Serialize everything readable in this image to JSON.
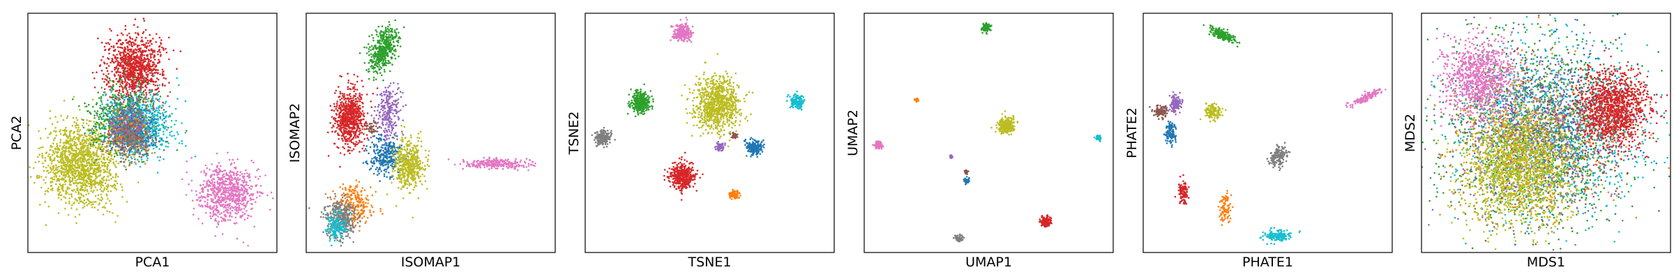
{
  "chart_data": [
    {
      "type": "scatter",
      "xlabel": "PCA1",
      "ylabel": "PCA2",
      "ticks": "none",
      "xlim": [
        0,
        1
      ],
      "ylim": [
        0,
        1
      ],
      "series": [
        {
          "color": "#bcbd22",
          "values": [
            {
              "x": 0.21,
              "y": 0.37
            }
          ],
          "spread": [
            0.07,
            0.085
          ],
          "count": 1400
        },
        {
          "color": "#d62728",
          "values": [
            {
              "x": 0.43,
              "y": 0.77
            }
          ],
          "spread": [
            0.055,
            0.07
          ],
          "count": 1000
        },
        {
          "color": "#2ca02c",
          "values": [
            {
              "x": 0.38,
              "y": 0.55
            }
          ],
          "spread": [
            0.065,
            0.065
          ],
          "count": 650
        },
        {
          "color": "#17becf",
          "values": [
            {
              "x": 0.45,
              "y": 0.53
            }
          ],
          "spread": [
            0.065,
            0.07
          ],
          "count": 650
        },
        {
          "color": "#1f77b4",
          "values": [
            {
              "x": 0.43,
              "y": 0.52
            }
          ],
          "spread": [
            0.05,
            0.055
          ],
          "count": 300
        },
        {
          "color": "#ff7f0e",
          "values": [
            {
              "x": 0.4,
              "y": 0.5
            }
          ],
          "spread": [
            0.045,
            0.05
          ],
          "count": 200
        },
        {
          "color": "#9467bd",
          "values": [
            {
              "x": 0.39,
              "y": 0.52
            }
          ],
          "spread": [
            0.045,
            0.05
          ],
          "count": 200
        },
        {
          "color": "#8c564b",
          "values": [
            {
              "x": 0.41,
              "y": 0.49
            }
          ],
          "spread": [
            0.04,
            0.04
          ],
          "count": 120
        },
        {
          "color": "#7f7f7f",
          "values": [
            {
              "x": 0.42,
              "y": 0.47
            }
          ],
          "spread": [
            0.04,
            0.04
          ],
          "count": 120
        },
        {
          "color": "#e377c2",
          "values": [
            {
              "x": 0.8,
              "y": 0.25
            }
          ],
          "spread": [
            0.06,
            0.06
          ],
          "count": 750
        }
      ]
    },
    {
      "type": "scatter",
      "xlabel": "ISOMAP1",
      "ylabel": "ISOMAP2",
      "ticks": "none",
      "xlim": [
        0,
        1
      ],
      "ylim": [
        0,
        1
      ],
      "series": [
        {
          "color": "#2ca02c",
          "values": [
            {
              "x": 0.31,
              "y": 0.85
            }
          ],
          "spread": [
            0.025,
            0.05
          ],
          "count": 450,
          "angle": -20
        },
        {
          "color": "#d62728",
          "values": [
            {
              "x": 0.17,
              "y": 0.56
            }
          ],
          "spread": [
            0.03,
            0.06
          ],
          "count": 700
        },
        {
          "color": "#9467bd",
          "values": [
            {
              "x": 0.33,
              "y": 0.58
            }
          ],
          "spread": [
            0.025,
            0.06
          ],
          "count": 250
        },
        {
          "color": "#1f77b4",
          "values": [
            {
              "x": 0.32,
              "y": 0.4
            }
          ],
          "spread": [
            0.03,
            0.04
          ],
          "count": 300
        },
        {
          "color": "#bcbd22",
          "values": [
            {
              "x": 0.41,
              "y": 0.37
            }
          ],
          "spread": [
            0.03,
            0.05
          ],
          "count": 450
        },
        {
          "color": "#ff7f0e",
          "values": [
            {
              "x": 0.19,
              "y": 0.2
            }
          ],
          "spread": [
            0.04,
            0.04
          ],
          "count": 250
        },
        {
          "color": "#7f7f7f",
          "values": [
            {
              "x": 0.14,
              "y": 0.14
            }
          ],
          "spread": [
            0.03,
            0.04
          ],
          "count": 350
        },
        {
          "color": "#17becf",
          "values": [
            {
              "x": 0.12,
              "y": 0.11
            }
          ],
          "spread": [
            0.02,
            0.03
          ],
          "count": 150
        },
        {
          "color": "#e377c2",
          "values": [
            {
              "x": 0.77,
              "y": 0.37
            }
          ],
          "spread": [
            0.07,
            0.01
          ],
          "count": 250
        },
        {
          "color": "#8c564b",
          "values": [
            {
              "x": 0.26,
              "y": 0.52
            }
          ],
          "spread": [
            0.015,
            0.015
          ],
          "count": 40
        }
      ]
    },
    {
      "type": "scatter",
      "xlabel": "TSNE1",
      "ylabel": "TSNE2",
      "ticks": "none",
      "xlim": [
        0,
        1
      ],
      "ylim": [
        0,
        1
      ],
      "series": [
        {
          "color": "#e377c2",
          "values": [
            {
              "x": 0.39,
              "y": 0.92
            }
          ],
          "spread": [
            0.018,
            0.018
          ],
          "count": 250
        },
        {
          "color": "#2ca02c",
          "values": [
            {
              "x": 0.22,
              "y": 0.63
            }
          ],
          "spread": [
            0.02,
            0.022
          ],
          "count": 300
        },
        {
          "color": "#bcbd22",
          "values": [
            {
              "x": 0.53,
              "y": 0.62
            }
          ],
          "spread": [
            0.045,
            0.055
          ],
          "count": 900
        },
        {
          "color": "#17becf",
          "values": [
            {
              "x": 0.85,
              "y": 0.63
            }
          ],
          "spread": [
            0.014,
            0.014
          ],
          "count": 150
        },
        {
          "color": "#7f7f7f",
          "values": [
            {
              "x": 0.07,
              "y": 0.48
            }
          ],
          "spread": [
            0.016,
            0.016
          ],
          "count": 200
        },
        {
          "color": "#8c564b",
          "values": [
            {
              "x": 0.6,
              "y": 0.49
            }
          ],
          "spread": [
            0.006,
            0.006
          ],
          "count": 40
        },
        {
          "color": "#9467bd",
          "values": [
            {
              "x": 0.54,
              "y": 0.44
            }
          ],
          "spread": [
            0.008,
            0.008
          ],
          "count": 60
        },
        {
          "color": "#1f77b4",
          "values": [
            {
              "x": 0.68,
              "y": 0.44
            }
          ],
          "spread": [
            0.016,
            0.016
          ],
          "count": 200
        },
        {
          "color": "#d62728",
          "values": [
            {
              "x": 0.39,
              "y": 0.32
            }
          ],
          "spread": [
            0.026,
            0.026
          ],
          "count": 450
        },
        {
          "color": "#ff7f0e",
          "values": [
            {
              "x": 0.6,
              "y": 0.24
            }
          ],
          "spread": [
            0.009,
            0.009
          ],
          "count": 80
        }
      ]
    },
    {
      "type": "scatter",
      "xlabel": "UMAP1",
      "ylabel": "UMAP2",
      "ticks": "none",
      "xlim": [
        0,
        1
      ],
      "ylim": [
        0,
        1
      ],
      "series": [
        {
          "color": "#2ca02c",
          "values": [
            {
              "x": 0.49,
              "y": 0.94
            }
          ],
          "spread": [
            0.008,
            0.008
          ],
          "count": 100
        },
        {
          "color": "#ff7f0e",
          "values": [
            {
              "x": 0.21,
              "y": 0.64
            }
          ],
          "spread": [
            0.004,
            0.004
          ],
          "count": 30
        },
        {
          "color": "#bcbd22",
          "values": [
            {
              "x": 0.57,
              "y": 0.53
            }
          ],
          "spread": [
            0.015,
            0.015
          ],
          "count": 300
        },
        {
          "color": "#e377c2",
          "values": [
            {
              "x": 0.06,
              "y": 0.45
            }
          ],
          "spread": [
            0.008,
            0.008
          ],
          "count": 100
        },
        {
          "color": "#17becf",
          "values": [
            {
              "x": 0.94,
              "y": 0.48
            }
          ],
          "spread": [
            0.005,
            0.005
          ],
          "count": 50
        },
        {
          "color": "#9467bd",
          "values": [
            {
              "x": 0.35,
              "y": 0.4
            }
          ],
          "spread": [
            0.003,
            0.003
          ],
          "count": 20
        },
        {
          "color": "#8c564b",
          "values": [
            {
              "x": 0.41,
              "y": 0.34
            }
          ],
          "spread": [
            0.003,
            0.006
          ],
          "count": 25
        },
        {
          "color": "#1f77b4",
          "values": [
            {
              "x": 0.41,
              "y": 0.3
            }
          ],
          "spread": [
            0.006,
            0.006
          ],
          "count": 50
        },
        {
          "color": "#d62728",
          "values": [
            {
              "x": 0.73,
              "y": 0.13
            }
          ],
          "spread": [
            0.01,
            0.01
          ],
          "count": 150
        },
        {
          "color": "#7f7f7f",
          "values": [
            {
              "x": 0.38,
              "y": 0.06
            }
          ],
          "spread": [
            0.007,
            0.007
          ],
          "count": 60
        }
      ]
    },
    {
      "type": "scatter",
      "xlabel": "PHATE1",
      "ylabel": "PHATE2",
      "ticks": "none",
      "xlim": [
        0,
        1
      ],
      "ylim": [
        0,
        1
      ],
      "series": [
        {
          "color": "#2ca02c",
          "values": [
            {
              "x": 0.32,
              "y": 0.91
            }
          ],
          "spread": [
            0.03,
            0.01
          ],
          "count": 200,
          "angle": -25
        },
        {
          "color": "#e377c2",
          "values": [
            {
              "x": 0.9,
              "y": 0.65
            }
          ],
          "spread": [
            0.035,
            0.008
          ],
          "count": 150,
          "angle": 25
        },
        {
          "color": "#8c564b",
          "values": [
            {
              "x": 0.07,
              "y": 0.59
            }
          ],
          "spread": [
            0.015,
            0.012
          ],
          "count": 100
        },
        {
          "color": "#9467bd",
          "values": [
            {
              "x": 0.13,
              "y": 0.62
            }
          ],
          "spread": [
            0.012,
            0.018
          ],
          "count": 120
        },
        {
          "color": "#bcbd22",
          "values": [
            {
              "x": 0.28,
              "y": 0.59
            }
          ],
          "spread": [
            0.018,
            0.015
          ],
          "count": 150
        },
        {
          "color": "#1f77b4",
          "values": [
            {
              "x": 0.11,
              "y": 0.5
            }
          ],
          "spread": [
            0.01,
            0.022
          ],
          "count": 120
        },
        {
          "color": "#7f7f7f",
          "values": [
            {
              "x": 0.54,
              "y": 0.4
            }
          ],
          "spread": [
            0.018,
            0.025
          ],
          "count": 150,
          "angle": -30
        },
        {
          "color": "#d62728",
          "values": [
            {
              "x": 0.16,
              "y": 0.25
            }
          ],
          "spread": [
            0.012,
            0.025
          ],
          "count": 100
        },
        {
          "color": "#ff7f0e",
          "values": [
            {
              "x": 0.33,
              "y": 0.19
            }
          ],
          "spread": [
            0.012,
            0.03
          ],
          "count": 100
        },
        {
          "color": "#17becf",
          "values": [
            {
              "x": 0.54,
              "y": 0.07
            }
          ],
          "spread": [
            0.03,
            0.012
          ],
          "count": 150
        }
      ]
    },
    {
      "type": "scatter",
      "xlabel": "MDS1",
      "ylabel": "MDS2",
      "ticks": "none",
      "xlim": [
        0,
        1
      ],
      "ylim": [
        0,
        1
      ],
      "series": [
        {
          "color": "#2ca02c",
          "values": [
            {
              "x": 0.48,
              "y": 0.5
            }
          ],
          "spread": [
            0.2,
            0.2
          ],
          "count": 1000
        },
        {
          "color": "#17becf",
          "values": [
            {
              "x": 0.53,
              "y": 0.52
            }
          ],
          "spread": [
            0.19,
            0.19
          ],
          "count": 900
        },
        {
          "color": "#1f77b4",
          "values": [
            {
              "x": 0.5,
              "y": 0.53
            }
          ],
          "spread": [
            0.17,
            0.17
          ],
          "count": 600
        },
        {
          "color": "#ff7f0e",
          "values": [
            {
              "x": 0.46,
              "y": 0.48
            }
          ],
          "spread": [
            0.17,
            0.17
          ],
          "count": 500
        },
        {
          "color": "#9467bd",
          "values": [
            {
              "x": 0.47,
              "y": 0.52
            }
          ],
          "spread": [
            0.17,
            0.17
          ],
          "count": 500
        },
        {
          "color": "#8c564b",
          "values": [
            {
              "x": 0.47,
              "y": 0.47
            }
          ],
          "spread": [
            0.17,
            0.17
          ],
          "count": 300
        },
        {
          "color": "#7f7f7f",
          "values": [
            {
              "x": 0.45,
              "y": 0.48
            }
          ],
          "spread": [
            0.17,
            0.17
          ],
          "count": 300
        },
        {
          "color": "#e377c2",
          "values": [
            {
              "x": 0.23,
              "y": 0.73
            }
          ],
          "spread": [
            0.07,
            0.08
          ],
          "count": 900
        },
        {
          "color": "#d62728",
          "values": [
            {
              "x": 0.77,
              "y": 0.6
            }
          ],
          "spread": [
            0.07,
            0.08
          ],
          "count": 1200
        },
        {
          "color": "#bcbd22",
          "values": [
            {
              "x": 0.39,
              "y": 0.36
            }
          ],
          "spread": [
            0.11,
            0.12
          ],
          "count": 1700
        }
      ]
    }
  ]
}
